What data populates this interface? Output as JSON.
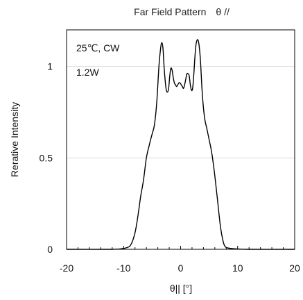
{
  "chart_data": {
    "type": "line",
    "title": "Far Field Pattern　θ //",
    "xlabel": "θ|| [°]",
    "ylabel": "Rerative Intensity",
    "xlim": [
      -20,
      20
    ],
    "ylim": [
      0,
      1.2
    ],
    "x_ticks": [
      "-20",
      "-10",
      "0",
      "10",
      "20"
    ],
    "y_ticks": [
      "0",
      "0.5",
      "1"
    ],
    "y_tick_values": [
      0,
      0.5,
      1
    ],
    "grid": "horizontal",
    "annotations": [
      "25℃, CW",
      "1.2W"
    ],
    "series": [
      {
        "color": "#000000",
        "x": [
          -20,
          -12,
          -10,
          -9,
          -8.5,
          -8,
          -7.7,
          -7.4,
          -7,
          -6.5,
          -6,
          -5.5,
          -5,
          -4.6,
          -4.2,
          -3.8,
          -3.5,
          -3.3,
          -3.1,
          -2.9,
          -2.7,
          -2.5,
          -2.3,
          -2.1,
          -1.9,
          -1.7,
          -1.5,
          -1.3,
          -1.1,
          -0.9,
          -0.7,
          -0.5,
          -0.3,
          -0.1,
          0.1,
          0.3,
          0.5,
          0.7,
          0.9,
          1.1,
          1.3,
          1.5,
          1.7,
          1.9,
          2.1,
          2.3,
          2.5,
          2.7,
          2.9,
          3.1,
          3.3,
          3.5,
          3.8,
          4.2,
          4.6,
          5,
          5.5,
          6,
          6.5,
          7,
          7.4,
          7.7,
          8,
          8.5,
          9,
          10,
          12,
          20
        ],
        "y": [
          0,
          0,
          0.005,
          0.015,
          0.04,
          0.09,
          0.14,
          0.2,
          0.29,
          0.38,
          0.5,
          0.57,
          0.63,
          0.68,
          0.8,
          1.0,
          1.1,
          1.13,
          1.1,
          1.0,
          0.92,
          0.87,
          0.86,
          0.88,
          0.95,
          0.99,
          0.98,
          0.94,
          0.91,
          0.9,
          0.89,
          0.9,
          0.91,
          0.91,
          0.9,
          0.89,
          0.88,
          0.9,
          0.93,
          0.96,
          0.96,
          0.95,
          0.9,
          0.87,
          0.88,
          0.95,
          1.05,
          1.12,
          1.145,
          1.14,
          1.1,
          1.02,
          0.85,
          0.72,
          0.66,
          0.6,
          0.52,
          0.4,
          0.26,
          0.12,
          0.05,
          0.02,
          0.01,
          0.006,
          0.004,
          0.002,
          0,
          0
        ]
      }
    ]
  }
}
